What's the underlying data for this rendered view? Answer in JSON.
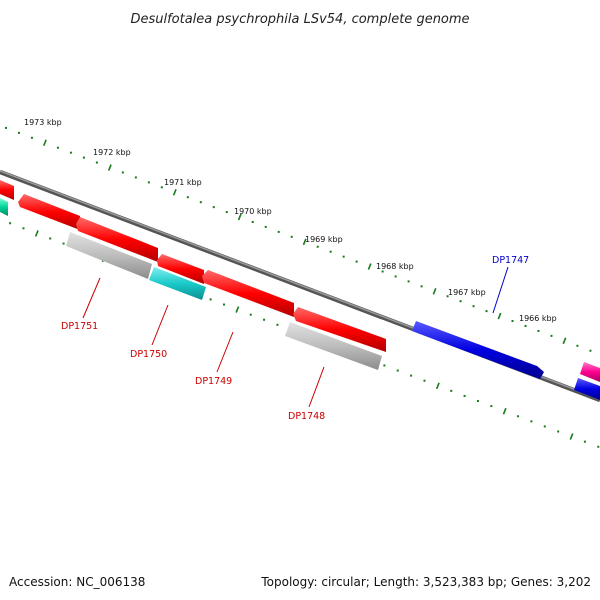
{
  "title": "Desulfotalea psychrophila LSv54, complete genome",
  "footer": {
    "accession": "Accession: NC_006138",
    "summary": "Topology: circular; Length: 3,523,383 bp; Genes: 3,202"
  },
  "ruler": [
    "1973 kbp",
    "1972 kbp",
    "1971 kbp",
    "1970 kbp",
    "1969 kbp",
    "1968 kbp",
    "1967 kbp",
    "1966 kbp"
  ],
  "gene_labels": [
    "DP1751",
    "DP1750",
    "DP1749",
    "DP1748",
    "DP1747"
  ],
  "colors": {
    "red": "#e60000",
    "gray": "#b4b4b4",
    "cyan": "#18c8c8",
    "blue": "#0000dd",
    "magenta": "#e6007e",
    "green_feature": "#00c896",
    "tick_green": "#1a7a1a",
    "backbone": "#7a7a7a",
    "label_red": "#cc0000",
    "label_blue": "#0000cc"
  }
}
